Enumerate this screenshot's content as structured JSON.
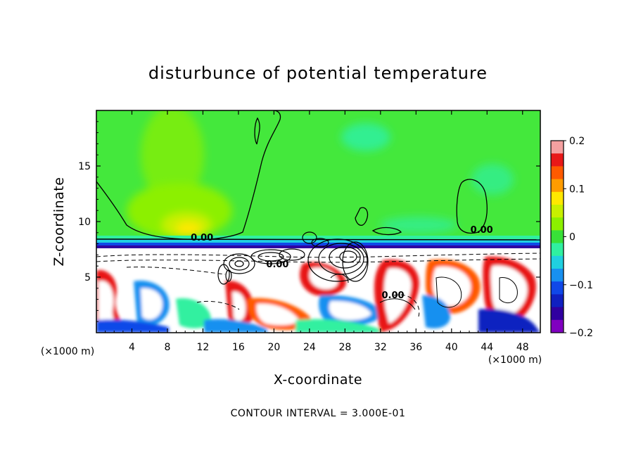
{
  "chart_data": {
    "type": "heatmap",
    "title": "disturbunce of potential temperature",
    "xlabel": "X-coordinate",
    "ylabel": "Z-coordinate",
    "x_unit": "(×1000 m)",
    "z_unit": "(×1000 m)",
    "xlim": [
      0,
      50
    ],
    "ylim": [
      0,
      20
    ],
    "x_ticks": [
      "4",
      "8",
      "12",
      "16",
      "20",
      "24",
      "28",
      "32",
      "36",
      "40",
      "44",
      "48"
    ],
    "x_tick_values": [
      4,
      8,
      12,
      16,
      20,
      24,
      28,
      32,
      36,
      40,
      44,
      48
    ],
    "z_ticks": [
      "5",
      "10",
      "15"
    ],
    "z_tick_values": [
      5,
      10,
      15
    ],
    "colorbar": {
      "range": [
        -0.2,
        0.2
      ],
      "ticks": [
        "0.2",
        "0.1",
        "0",
        "−0.1",
        "−0.2"
      ],
      "tick_values": [
        0.2,
        0.1,
        0,
        -0.1,
        -0.2
      ],
      "colors": [
        "#f4a0a0",
        "#e81818",
        "#ff5a00",
        "#ff9c00",
        "#ffe800",
        "#c8f000",
        "#8cf000",
        "#38e038",
        "#30f0a0",
        "#20d0e0",
        "#1890f0",
        "#1048e8",
        "#1020c0",
        "#3000a0",
        "#8000c0"
      ]
    },
    "contour_labels": [
      {
        "text": "0.00",
        "x": 11.9,
        "z": 8.3
      },
      {
        "text": "0.00",
        "x": 43.4,
        "z": 9.0
      },
      {
        "text": "0.00",
        "x": 20.4,
        "z": 5.9
      },
      {
        "text": "0.00",
        "x": 33.4,
        "z": 3.1
      }
    ]
  },
  "footer": {
    "contour_interval": "CONTOUR INTERVAL = 3.000E-01"
  }
}
